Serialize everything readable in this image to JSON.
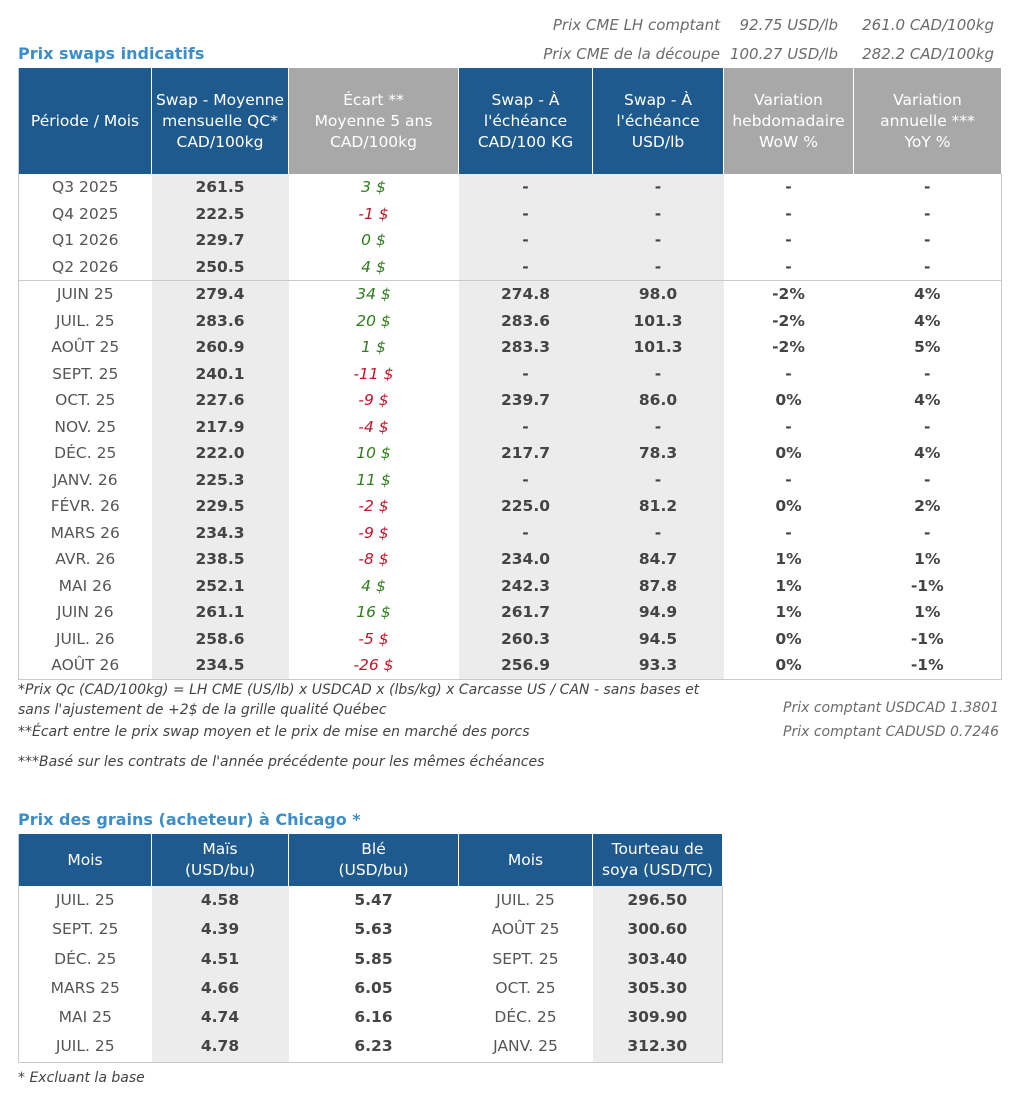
{
  "cme": {
    "line1": {
      "label": "Prix CME LH comptant",
      "usd": "92.75 USD/lb",
      "cad": "261.0 CAD/100kg"
    },
    "line2": {
      "label": "Prix CME de la découpe",
      "usd": "100.27 USD/lb",
      "cad": "282.2 CAD/100kg"
    }
  },
  "swaps": {
    "title": "Prix swaps indicatifs",
    "headers": [
      {
        "l1": "Période / Mois",
        "l2": "",
        "l3": ""
      },
      {
        "l1": "Swap - Moyenne",
        "l2": "mensuelle QC*",
        "l3": "CAD/100kg"
      },
      {
        "l1": "Écart **",
        "l2": "Moyenne 5 ans",
        "l3": "CAD/100kg"
      },
      {
        "l1": "Swap - À",
        "l2": "l'échéance",
        "l3": "CAD/100 KG"
      },
      {
        "l1": "Swap - À",
        "l2": "l'échéance",
        "l3": "USD/lb"
      },
      {
        "l1": "Variation",
        "l2": "hebdomadaire",
        "l3": "WoW %"
      },
      {
        "l1": "Variation",
        "l2": "annuelle ***",
        "l3": "YoY %"
      }
    ],
    "rows": [
      {
        "period": "Q3 2025",
        "swap": "261.5",
        "ecart": "3 $",
        "ecart_sign": "pos",
        "cad": "-",
        "usd": "-",
        "wow": "-",
        "wow_sign": "dash",
        "yoy": "-",
        "yoy_sign": "dash"
      },
      {
        "period": "Q4 2025",
        "swap": "222.5",
        "ecart": "-1 $",
        "ecart_sign": "neg",
        "cad": "-",
        "usd": "-",
        "wow": "-",
        "wow_sign": "dash",
        "yoy": "-",
        "yoy_sign": "dash"
      },
      {
        "period": "Q1 2026",
        "swap": "229.7",
        "ecart": "0 $",
        "ecart_sign": "pos",
        "cad": "-",
        "usd": "-",
        "wow": "-",
        "wow_sign": "dash",
        "yoy": "-",
        "yoy_sign": "dash"
      },
      {
        "period": "Q2 2026",
        "swap": "250.5",
        "ecart": "4 $",
        "ecart_sign": "pos",
        "cad": "-",
        "usd": "-",
        "wow": "-",
        "wow_sign": "dash",
        "yoy": "-",
        "yoy_sign": "dash"
      },
      {
        "period": "JUIN 25",
        "swap": "279.4",
        "ecart": "34 $",
        "ecart_sign": "pos",
        "cad": "274.8",
        "usd": "98.0",
        "wow": "-2%",
        "wow_sign": "neg",
        "yoy": "4%",
        "yoy_sign": "pos"
      },
      {
        "period": "JUIL. 25",
        "swap": "283.6",
        "ecart": "20 $",
        "ecart_sign": "pos",
        "cad": "283.6",
        "usd": "101.3",
        "wow": "-2%",
        "wow_sign": "neg",
        "yoy": "4%",
        "yoy_sign": "pos"
      },
      {
        "period": "AOÛT 25",
        "swap": "260.9",
        "ecart": "1 $",
        "ecart_sign": "pos",
        "cad": "283.3",
        "usd": "101.3",
        "wow": "-2%",
        "wow_sign": "neg",
        "yoy": "5%",
        "yoy_sign": "pos"
      },
      {
        "period": "SEPT. 25",
        "swap": "240.1",
        "ecart": "-11 $",
        "ecart_sign": "neg",
        "cad": "-",
        "usd": "-",
        "wow": "-",
        "wow_sign": "dash",
        "yoy": "-",
        "yoy_sign": "dash"
      },
      {
        "period": "OCT. 25",
        "swap": "227.6",
        "ecart": "-9 $",
        "ecart_sign": "neg",
        "cad": "239.7",
        "usd": "86.0",
        "wow": "0%",
        "wow_sign": "neg",
        "yoy": "4%",
        "yoy_sign": "pos"
      },
      {
        "period": "NOV. 25",
        "swap": "217.9",
        "ecart": "-4 $",
        "ecart_sign": "neg",
        "cad": "-",
        "usd": "-",
        "wow": "-",
        "wow_sign": "dash",
        "yoy": "-",
        "yoy_sign": "dash"
      },
      {
        "period": "DÉC. 25",
        "swap": "222.0",
        "ecart": "10 $",
        "ecart_sign": "pos",
        "cad": "217.7",
        "usd": "78.3",
        "wow": "0%",
        "wow_sign": "pos",
        "yoy": "4%",
        "yoy_sign": "pos"
      },
      {
        "period": "JANV. 26",
        "swap": "225.3",
        "ecart": "11 $",
        "ecart_sign": "pos",
        "cad": "-",
        "usd": "-",
        "wow": "-",
        "wow_sign": "dash",
        "yoy": "-",
        "yoy_sign": "dash"
      },
      {
        "period": "FÉVR. 26",
        "swap": "229.5",
        "ecart": "-2 $",
        "ecart_sign": "neg",
        "cad": "225.0",
        "usd": "81.2",
        "wow": "0%",
        "wow_sign": "pos",
        "yoy": "2%",
        "yoy_sign": "pos"
      },
      {
        "period": "MARS 26",
        "swap": "234.3",
        "ecart": "-9 $",
        "ecart_sign": "neg",
        "cad": "-",
        "usd": "-",
        "wow": "-",
        "wow_sign": "dash",
        "yoy": "-",
        "yoy_sign": "dash"
      },
      {
        "period": "AVR. 26",
        "swap": "238.5",
        "ecart": "-8 $",
        "ecart_sign": "neg",
        "cad": "234.0",
        "usd": "84.7",
        "wow": "1%",
        "wow_sign": "pos",
        "yoy": "1%",
        "yoy_sign": "pos"
      },
      {
        "period": "MAI 26",
        "swap": "252.1",
        "ecart": "4 $",
        "ecart_sign": "pos",
        "cad": "242.3",
        "usd": "87.8",
        "wow": "1%",
        "wow_sign": "pos",
        "yoy": "-1%",
        "yoy_sign": "neg"
      },
      {
        "period": "JUIN 26",
        "swap": "261.1",
        "ecart": "16 $",
        "ecart_sign": "pos",
        "cad": "261.7",
        "usd": "94.9",
        "wow": "1%",
        "wow_sign": "pos",
        "yoy": "1%",
        "yoy_sign": "pos"
      },
      {
        "period": "JUIL. 26",
        "swap": "258.6",
        "ecart": "-5 $",
        "ecart_sign": "neg",
        "cad": "260.3",
        "usd": "94.5",
        "wow": "0%",
        "wow_sign": "pos",
        "yoy": "-1%",
        "yoy_sign": "neg"
      },
      {
        "period": "AOÛT 26",
        "swap": "234.5",
        "ecart": "-26 $",
        "ecart_sign": "neg",
        "cad": "256.9",
        "usd": "93.3",
        "wow": "0%",
        "wow_sign": "pos",
        "yoy": "-1%",
        "yoy_sign": "neg"
      }
    ],
    "notes": {
      "n1_line1": "*Prix Qc (CAD/100kg) = LH CME (US/lb) x USDCAD x (lbs/kg) x Carcasse US / CAN - sans bases et",
      "n1_line2": "sans l'ajustement de +2$ de la grille qualité Québec",
      "n2": "**Écart entre le prix swap moyen et le prix de mise en marché des porcs",
      "n3": "***Basé sur les contrats de l'année précédente pour les mêmes échéances",
      "usdcad": "Prix comptant USDCAD 1.3801",
      "cadusd": "Prix comptant CADUSD 0.7246"
    }
  },
  "grains": {
    "title": "Prix des grains (acheteur) à Chicago *",
    "headers": [
      {
        "l1": "Mois",
        "l2": ""
      },
      {
        "l1": "Maïs",
        "l2": "(USD/bu)"
      },
      {
        "l1": "Blé",
        "l2": "(USD/bu)"
      },
      {
        "l1": "Mois",
        "l2": ""
      },
      {
        "l1": "Tourteau de",
        "l2": "soya (USD/TC)"
      }
    ],
    "rows": [
      {
        "mois1": "JUIL. 25",
        "mais": "4.58",
        "ble": "5.47",
        "mois2": "JUIL. 25",
        "soya": "296.50"
      },
      {
        "mois1": "SEPT. 25",
        "mais": "4.39",
        "ble": "5.63",
        "mois2": "AOÛT 25",
        "soya": "300.60"
      },
      {
        "mois1": "DÉC. 25",
        "mais": "4.51",
        "ble": "5.85",
        "mois2": "SEPT. 25",
        "soya": "303.40"
      },
      {
        "mois1": "MARS 25",
        "mais": "4.66",
        "ble": "6.05",
        "mois2": "OCT. 25",
        "soya": "305.30"
      },
      {
        "mois1": "MAI 25",
        "mais": "4.74",
        "ble": "6.16",
        "mois2": "DÉC. 25",
        "soya": "309.90"
      },
      {
        "mois1": "JUIL. 25",
        "mais": "4.78",
        "ble": "6.23",
        "mois2": "JANV. 25",
        "soya": "312.30"
      }
    ],
    "note": "* Excluant la base"
  },
  "colors": {
    "header_blue": "#1e5a8e",
    "header_grey": "#a8a8a8",
    "title_blue": "#3c8dc8",
    "positive": "#2f7d1c",
    "negative": "#c0142c"
  }
}
